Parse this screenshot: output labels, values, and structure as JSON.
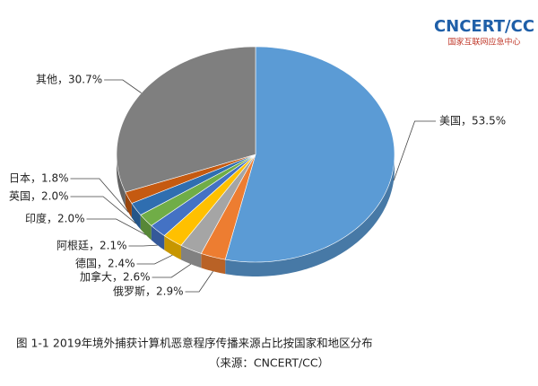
{
  "logo": {
    "text": "CNCERT/CC",
    "subtitle": "国家互联网应急中心"
  },
  "chart_data": {
    "type": "pie",
    "title": "图 1-1  2019年境外捕获计算机恶意程序传播来源占比按国家和地区分布",
    "subtitle": "（来源：CNCERT/CC）",
    "values": [
      53.5,
      2.9,
      2.6,
      2.4,
      2.1,
      2.0,
      2.0,
      1.8,
      30.7
    ],
    "value_labels": [
      "美国，53.5%",
      "俄罗斯，2.9%",
      "加拿大，2.6%",
      "德国，2.4%",
      "阿根廷，2.1%",
      "印度，2.0%",
      "英国，2.0%",
      "日本，1.8%",
      "其他，30.7%"
    ],
    "colors": [
      "#5b9bd5",
      "#ed7d31",
      "#a5a5a5",
      "#ffc000",
      "#4472c4",
      "#70ad47",
      "#2f6eb0",
      "#c55a11",
      "#7f7f7f"
    ]
  }
}
